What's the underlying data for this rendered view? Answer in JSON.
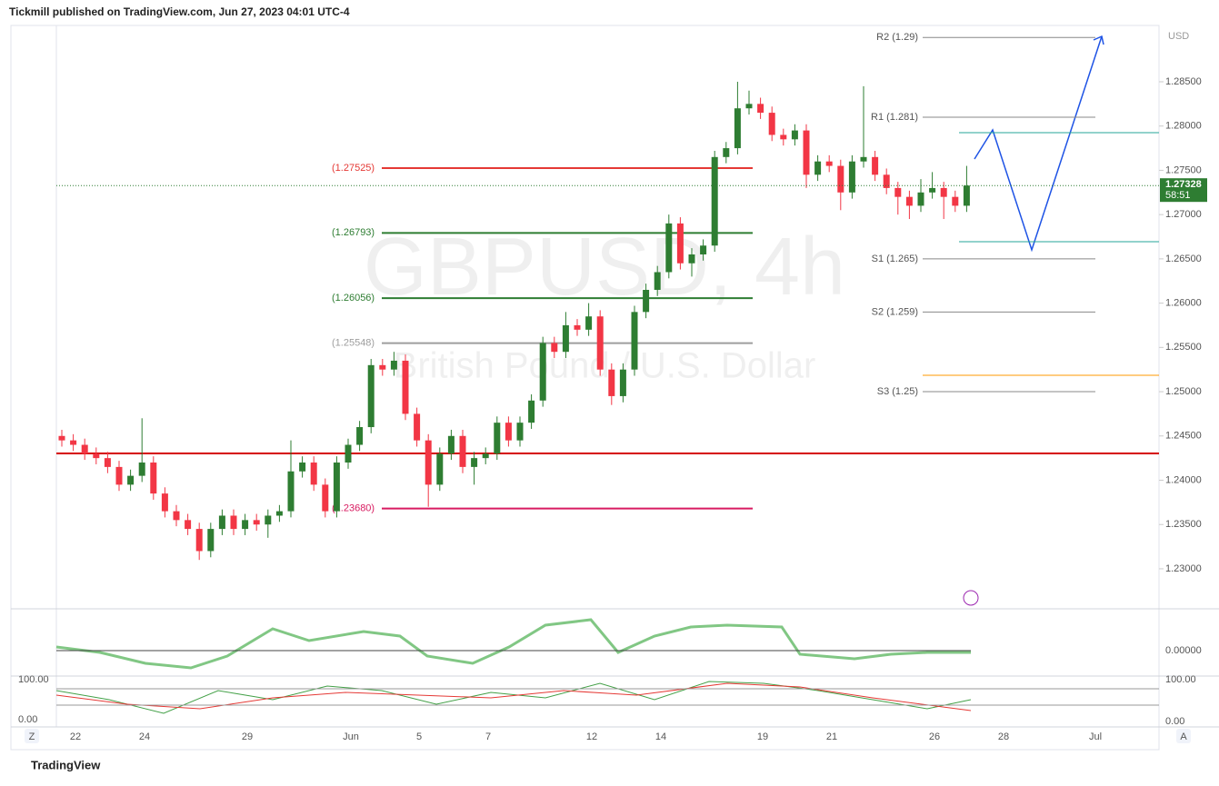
{
  "header": "Tickmill published on TradingView.com, Jun 27, 2023 04:01 UTC-4",
  "footer": "TradingView",
  "chart_data": {
    "type": "candlestick",
    "watermark": "GBPUSD, 4h",
    "watermark_sub": "British Pound / U.S. Dollar",
    "currency": "USD",
    "last_price": {
      "value": 1.27328,
      "label": "1.27328"
    },
    "countdown": "58:51",
    "up_color": "#2e7d32",
    "down_color": "#f23645",
    "ylim": [
      1.22548,
      1.29136
    ],
    "yticks": [
      {
        "value": 1.23,
        "label": "1.23000"
      },
      {
        "value": 1.235,
        "label": "1.23500"
      },
      {
        "value": 1.24,
        "label": "1.24000"
      },
      {
        "value": 1.245,
        "label": "1.24500"
      },
      {
        "value": 1.25,
        "label": "1.25000"
      },
      {
        "value": 1.255,
        "label": "1.25500"
      },
      {
        "value": 1.26,
        "label": "1.26000"
      },
      {
        "value": 1.265,
        "label": "1.26500"
      },
      {
        "value": 1.27,
        "label": "1.27000"
      },
      {
        "value": 1.275,
        "label": "1.27500"
      },
      {
        "value": 1.28,
        "label": "1.28000"
      },
      {
        "value": 1.285,
        "label": "1.28500"
      }
    ],
    "xlabels": [
      "22",
      "24",
      "29",
      "Jun",
      "5",
      "7",
      "12",
      "14",
      "19",
      "21",
      "26",
      "28",
      "Jul"
    ],
    "open": [
      1.245,
      1.2445,
      1.244,
      1.243,
      1.2425,
      1.2415,
      1.2395,
      1.2405,
      1.242,
      1.2385,
      1.2365,
      1.2355,
      1.2345,
      1.232,
      1.2345,
      1.236,
      1.2345,
      1.2355,
      1.235,
      1.236,
      1.2365,
      1.241,
      1.242,
      1.2395,
      1.2365,
      1.242,
      1.244,
      1.246,
      1.253,
      1.2525,
      1.2535,
      1.2475,
      1.2445,
      1.2395,
      1.243,
      1.245,
      1.2415,
      1.2425,
      1.243,
      1.2465,
      1.2445,
      1.2465,
      1.249,
      1.2555,
      1.2545,
      1.2575,
      1.257,
      1.2585,
      1.2525,
      1.2495,
      1.2525,
      1.259,
      1.2615,
      1.2635,
      1.269,
      1.2645,
      1.2655,
      1.2665,
      1.2765,
      1.2775,
      1.282,
      1.2825,
      1.2815,
      1.279,
      1.2785,
      1.2795,
      1.2745,
      1.276,
      1.2755,
      1.2725,
      1.276,
      1.2765,
      1.2745,
      1.273,
      1.272,
      1.271,
      1.2725,
      1.273,
      1.272,
      1.271
    ],
    "high": [
      1.2457,
      1.2452,
      1.2447,
      1.2437,
      1.2432,
      1.2422,
      1.2412,
      1.247,
      1.2427,
      1.2392,
      1.2372,
      1.2362,
      1.2352,
      1.2352,
      1.2367,
      1.2367,
      1.2362,
      1.2362,
      1.2367,
      1.2372,
      1.2445,
      1.2427,
      1.2427,
      1.2402,
      1.2427,
      1.2447,
      1.2467,
      1.2537,
      1.2537,
      1.2545,
      1.2542,
      1.2482,
      1.2452,
      1.2437,
      1.2457,
      1.2457,
      1.2432,
      1.2437,
      1.2472,
      1.2472,
      1.2472,
      1.2497,
      1.2562,
      1.2562,
      1.259,
      1.2582,
      1.26,
      1.2592,
      1.2532,
      1.2532,
      1.2597,
      1.2622,
      1.2642,
      1.27,
      1.2697,
      1.2662,
      1.2672,
      1.2772,
      1.2782,
      1.285,
      1.284,
      1.2832,
      1.2822,
      1.2797,
      1.2802,
      1.2802,
      1.2767,
      1.2767,
      1.2762,
      1.2767,
      1.2845,
      1.2772,
      1.2752,
      1.2737,
      1.2727,
      1.274,
      1.2748,
      1.2737,
      1.2727,
      1.2755
    ],
    "low": [
      1.2438,
      1.2433,
      1.2423,
      1.2418,
      1.2408,
      1.2388,
      1.2388,
      1.2398,
      1.2378,
      1.2358,
      1.2348,
      1.2338,
      1.231,
      1.2313,
      1.2338,
      1.2338,
      1.2338,
      1.2343,
      1.2335,
      1.2353,
      1.2358,
      1.2403,
      1.2388,
      1.2358,
      1.2358,
      1.2413,
      1.2433,
      1.2453,
      1.2518,
      1.2518,
      1.2468,
      1.2438,
      1.237,
      1.2388,
      1.2423,
      1.2408,
      1.2395,
      1.2418,
      1.2423,
      1.2438,
      1.2438,
      1.2458,
      1.2483,
      1.2538,
      1.2538,
      1.2563,
      1.2563,
      1.2518,
      1.2485,
      1.2488,
      1.2518,
      1.2583,
      1.2608,
      1.2628,
      1.2638,
      1.263,
      1.2648,
      1.2658,
      1.2758,
      1.2768,
      1.2813,
      1.2808,
      1.2783,
      1.2778,
      1.2778,
      1.273,
      1.2738,
      1.2748,
      1.2705,
      1.2718,
      1.2753,
      1.2738,
      1.2723,
      1.27,
      1.2695,
      1.2703,
      1.2718,
      1.2695,
      1.2703,
      1.2703
    ],
    "close": [
      1.2445,
      1.244,
      1.243,
      1.2425,
      1.2415,
      1.2395,
      1.2405,
      1.242,
      1.2385,
      1.2365,
      1.2355,
      1.2345,
      1.232,
      1.2345,
      1.236,
      1.2345,
      1.2355,
      1.235,
      1.236,
      1.2365,
      1.241,
      1.242,
      1.2395,
      1.2365,
      1.242,
      1.244,
      1.246,
      1.253,
      1.2525,
      1.2535,
      1.2475,
      1.2445,
      1.2395,
      1.243,
      1.245,
      1.2415,
      1.2425,
      1.243,
      1.2465,
      1.2445,
      1.2465,
      1.249,
      1.2555,
      1.2545,
      1.2575,
      1.257,
      1.2585,
      1.2525,
      1.2495,
      1.2525,
      1.259,
      1.2615,
      1.2635,
      1.269,
      1.2645,
      1.2655,
      1.2665,
      1.2765,
      1.2775,
      1.282,
      1.2825,
      1.2815,
      1.279,
      1.2785,
      1.2795,
      1.2745,
      1.276,
      1.2755,
      1.2725,
      1.276,
      1.2765,
      1.2745,
      1.273,
      1.272,
      1.271,
      1.2725,
      1.273,
      1.272,
      1.271,
      1.27328
    ],
    "levels": [
      {
        "label": "(1.27525)",
        "value": 1.27525,
        "color": "#e53935"
      },
      {
        "label": "(1.26793)",
        "value": 1.26793,
        "color": "#2e7d32"
      },
      {
        "label": "(1.26056)",
        "value": 1.26056,
        "color": "#2e7d32"
      },
      {
        "label": "(1.25548)",
        "value": 1.25548,
        "color": "#9e9e9e"
      },
      {
        "label": "(1.23680)",
        "value": 1.2368,
        "color": "#d81b60"
      }
    ],
    "pivots": [
      {
        "label": "R2 (1.29)",
        "value": 1.29
      },
      {
        "label": "R1 (1.281)",
        "value": 1.281
      },
      {
        "label": "S1 (1.265)",
        "value": 1.265
      },
      {
        "label": "S2 (1.259)",
        "value": 1.259
      },
      {
        "label": "S3 (1.25)",
        "value": 1.25
      }
    ],
    "osc_labels": [
      "0.00000",
      "100.00",
      "0.00"
    ]
  }
}
